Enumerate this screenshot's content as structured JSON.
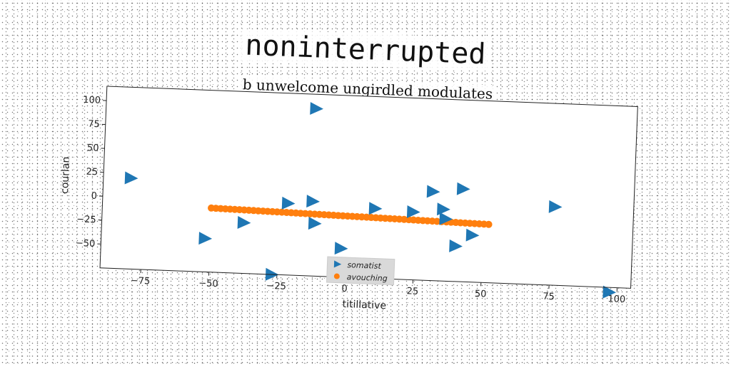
{
  "chart_data": {
    "type": "scatter",
    "title": "noninterrupted",
    "subtitle": "b unwelcome ungirdled modulates",
    "xlabel": "titillative",
    "ylabel": "courlan",
    "xlim": [
      -90,
      105
    ],
    "ylim": [
      -75,
      115
    ],
    "xticks": [
      -75,
      -50,
      -25,
      0,
      25,
      50,
      75,
      100
    ],
    "yticks": [
      100,
      75,
      50,
      25,
      0,
      -25,
      -50
    ],
    "grid": false,
    "legend_position": "lower-center",
    "series": [
      {
        "name": "somatist",
        "marker": "triangle-right",
        "color": "#1f77b4",
        "points": [
          [
            -80,
            20
          ],
          [
            -52,
            -40
          ],
          [
            -38,
            -22
          ],
          [
            -27,
            -75
          ],
          [
            -22,
            0
          ],
          [
            -13,
            3
          ],
          [
            -12,
            -20
          ],
          [
            -13,
            100
          ],
          [
            -2,
            -45
          ],
          [
            10,
            -2
          ],
          [
            24,
            -4
          ],
          [
            31,
            18
          ],
          [
            35,
            0
          ],
          [
            36,
            -10
          ],
          [
            40,
            -38
          ],
          [
            42,
            22
          ],
          [
            46,
            -26
          ],
          [
            76,
            7
          ],
          [
            97,
            -80
          ]
        ]
      },
      {
        "name": "avouching",
        "marker": "circle",
        "color": "#ff7f0e",
        "x_start": -50,
        "x_end": 52,
        "y_start": -8,
        "y_end": -14,
        "n_points": 60
      }
    ]
  }
}
